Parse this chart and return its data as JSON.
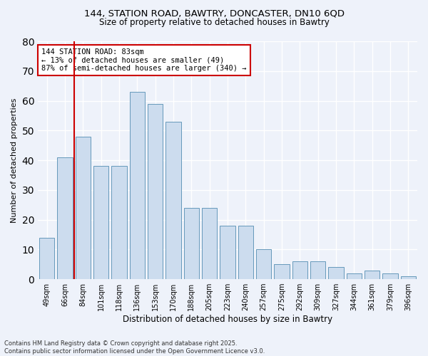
{
  "title1": "144, STATION ROAD, BAWTRY, DONCASTER, DN10 6QD",
  "title2": "Size of property relative to detached houses in Bawtry",
  "xlabel": "Distribution of detached houses by size in Bawtry",
  "ylabel": "Number of detached properties",
  "categories": [
    "49sqm",
    "66sqm",
    "84sqm",
    "101sqm",
    "118sqm",
    "136sqm",
    "153sqm",
    "170sqm",
    "188sqm",
    "205sqm",
    "223sqm",
    "240sqm",
    "257sqm",
    "275sqm",
    "292sqm",
    "309sqm",
    "327sqm",
    "344sqm",
    "361sqm",
    "379sqm",
    "396sqm"
  ],
  "values": [
    14,
    41,
    48,
    38,
    38,
    63,
    59,
    53,
    24,
    24,
    18,
    18,
    10,
    5,
    6,
    6,
    4,
    2,
    3,
    2,
    1
  ],
  "bar_color": "#ccdcee",
  "bar_edge_color": "#6699bb",
  "background_color": "#eef2fa",
  "grid_color": "#ffffff",
  "vline_x": 1.5,
  "vline_color": "#cc0000",
  "annotation_text": "144 STATION ROAD: 83sqm\n← 13% of detached houses are smaller (49)\n87% of semi-detached houses are larger (340) →",
  "annotation_box_color": "#cc0000",
  "ylim": [
    0,
    80
  ],
  "yticks": [
    0,
    10,
    20,
    30,
    40,
    50,
    60,
    70,
    80
  ],
  "footnote": "Contains HM Land Registry data © Crown copyright and database right 2025.\nContains public sector information licensed under the Open Government Licence v3.0."
}
